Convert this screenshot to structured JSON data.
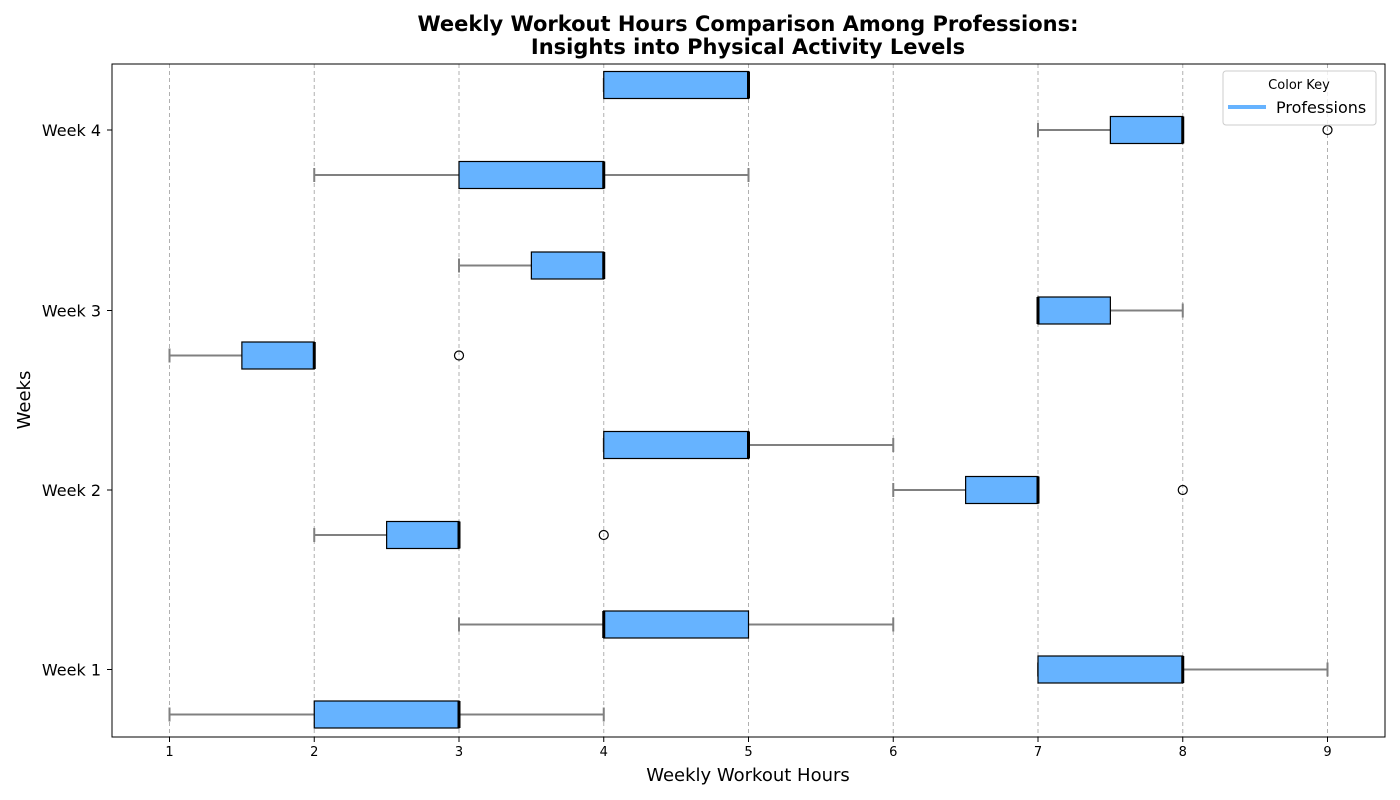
{
  "chart_data": {
    "type": "boxplot",
    "orientation": "horizontal",
    "title_line1": "Weekly Workout Hours Comparison Among Professions:",
    "title_line2": "Insights into Physical Activity Levels",
    "xlabel": "Weekly Workout Hours",
    "ylabel": "Weeks",
    "xlim": [
      0.6,
      9.4
    ],
    "x_ticks": [
      1,
      2,
      3,
      4,
      5,
      6,
      7,
      8,
      9
    ],
    "categories": [
      "Week 1",
      "Week 2",
      "Week 3",
      "Week 4"
    ],
    "grid": "x-dashed",
    "box_color": "#66b3ff",
    "whisker_color": "#808080",
    "legend": {
      "title": "Color Key",
      "entry": "Professions",
      "placement": "top-right"
    },
    "boxes": [
      {
        "week": "Week 1",
        "offset": -0.25,
        "whisker_low": 1,
        "q1": 2,
        "median": 3,
        "q3": 3,
        "whisker_high": 4,
        "outliers": []
      },
      {
        "week": "Week 1",
        "offset": 0,
        "whisker_low": 7,
        "q1": 7,
        "median": 8,
        "q3": 8,
        "whisker_high": 9,
        "outliers": []
      },
      {
        "week": "Week 1",
        "offset": 0.25,
        "whisker_low": 3,
        "q1": 4,
        "median": 4,
        "q3": 5,
        "whisker_high": 6,
        "outliers": []
      },
      {
        "week": "Week 2",
        "offset": -0.25,
        "whisker_low": 2,
        "q1": 2.5,
        "median": 3,
        "q3": 3,
        "whisker_high": 3,
        "outliers": [
          4
        ]
      },
      {
        "week": "Week 2",
        "offset": 0,
        "whisker_low": 6,
        "q1": 6.5,
        "median": 7,
        "q3": 7,
        "whisker_high": 7,
        "outliers": [
          8
        ]
      },
      {
        "week": "Week 2",
        "offset": 0.25,
        "whisker_low": 4,
        "q1": 4,
        "median": 5,
        "q3": 5,
        "whisker_high": 6,
        "outliers": []
      },
      {
        "week": "Week 3",
        "offset": -0.25,
        "whisker_low": 1,
        "q1": 1.5,
        "median": 2,
        "q3": 2,
        "whisker_high": 2,
        "outliers": [
          3
        ]
      },
      {
        "week": "Week 3",
        "offset": 0,
        "whisker_low": 7,
        "q1": 7,
        "median": 7,
        "q3": 7.5,
        "whisker_high": 8,
        "outliers": []
      },
      {
        "week": "Week 3",
        "offset": 0.25,
        "whisker_low": 3,
        "q1": 3.5,
        "median": 4,
        "q3": 4,
        "whisker_high": 4,
        "outliers": []
      },
      {
        "week": "Week 4",
        "offset": -0.25,
        "whisker_low": 2,
        "q1": 3,
        "median": 4,
        "q3": 4,
        "whisker_high": 5,
        "outliers": []
      },
      {
        "week": "Week 4",
        "offset": 0,
        "whisker_low": 7,
        "q1": 7.5,
        "median": 8,
        "q3": 8,
        "whisker_high": 8,
        "outliers": [
          9
        ]
      },
      {
        "week": "Week 4",
        "offset": 0.25,
        "whisker_low": 4,
        "q1": 4,
        "median": 5,
        "q3": 5,
        "whisker_high": 5,
        "outliers": []
      }
    ]
  }
}
